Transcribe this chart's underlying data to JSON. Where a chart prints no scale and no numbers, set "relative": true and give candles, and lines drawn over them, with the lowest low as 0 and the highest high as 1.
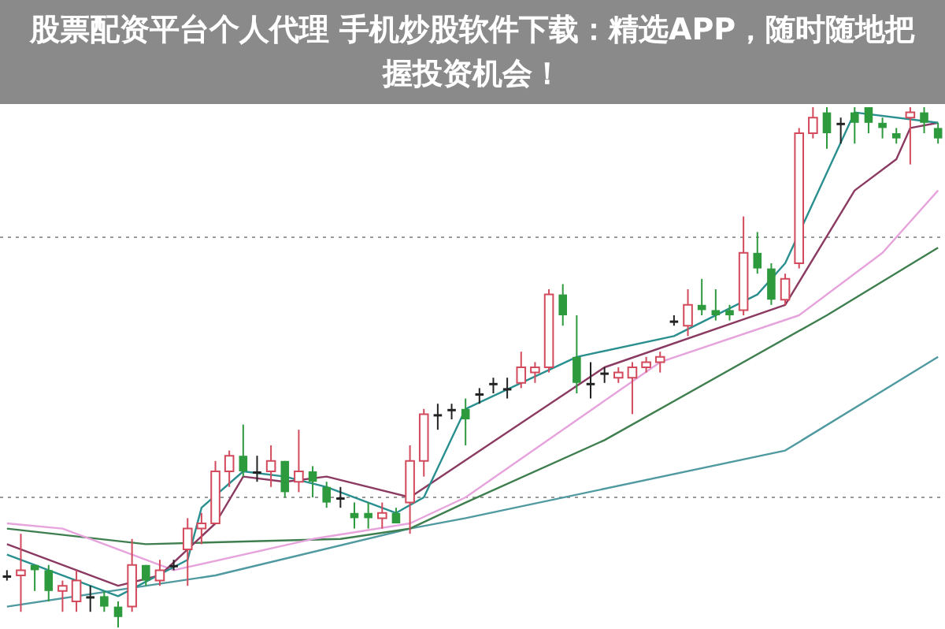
{
  "chart_data": {
    "type": "candlestick",
    "title": "股票配资平台个人代理 手机炒股软件下载：精选APP，随时随地把握投资机会！",
    "relative": true,
    "legend": false,
    "marker": "none",
    "line_style": "solid",
    "categories": [
      null,
      null,
      null,
      null,
      null,
      null,
      null,
      null,
      null,
      null,
      null,
      null,
      null,
      null,
      null,
      null,
      null,
      null,
      null,
      null,
      null,
      null,
      null,
      null,
      null,
      null,
      null,
      null,
      null,
      null,
      null,
      null,
      null,
      null,
      null,
      null,
      null,
      null,
      null,
      null,
      null,
      null,
      null,
      null,
      null,
      null,
      null,
      null,
      null,
      null,
      null,
      null,
      null,
      null,
      null,
      null,
      null,
      null,
      null,
      null,
      null,
      null,
      null,
      null,
      null,
      null,
      null,
      null
    ],
    "ohlc": [
      [
        0.1,
        0.11,
        0.09,
        0.1
      ],
      [
        0.1,
        0.18,
        0.03,
        0.11
      ],
      [
        0.12,
        0.12,
        0.07,
        0.11
      ],
      [
        0.11,
        0.12,
        0.05,
        0.07
      ],
      [
        0.07,
        0.09,
        0.03,
        0.08
      ],
      [
        0.05,
        0.11,
        0.03,
        0.09
      ],
      [
        0.06,
        0.08,
        0.03,
        0.06
      ],
      [
        0.06,
        0.07,
        0.03,
        0.04
      ],
      [
        0.04,
        0.05,
        0,
        0.02
      ],
      [
        0.04,
        0.17,
        0.03,
        0.12
      ],
      [
        0.12,
        0.12,
        0.08,
        0.09
      ],
      [
        0.09,
        0.13,
        0.08,
        0.11
      ],
      [
        0.12,
        0.13,
        0.11,
        0.12
      ],
      [
        0.15,
        0.21,
        0.08,
        0.19
      ],
      [
        0.19,
        0.22,
        0.16,
        0.2
      ],
      [
        0.2,
        0.32,
        0.2,
        0.3
      ],
      [
        0.3,
        0.34,
        0.27,
        0.33
      ],
      [
        0.33,
        0.39,
        0.29,
        0.3
      ],
      [
        0.3,
        0.33,
        0.28,
        0.3
      ],
      [
        0.3,
        0.35,
        0.27,
        0.32
      ],
      [
        0.32,
        0.32,
        0.25,
        0.26
      ],
      [
        0.28,
        0.38,
        0.26,
        0.3
      ],
      [
        0.3,
        0.31,
        0.25,
        0.28
      ],
      [
        0.27,
        0.28,
        0.23,
        0.24
      ],
      [
        0.25,
        0.27,
        0.23,
        0.25
      ],
      [
        0.22,
        0.24,
        0.19,
        0.21
      ],
      [
        0.22,
        0.24,
        0.19,
        0.21
      ],
      [
        0.21,
        0.24,
        0.19,
        0.22
      ],
      [
        0.22,
        0.23,
        0.2,
        0.2
      ],
      [
        0.24,
        0.35,
        0.18,
        0.32
      ],
      [
        0.32,
        0.42,
        0.29,
        0.41
      ],
      [
        0.41,
        0.43,
        0.38,
        0.41
      ],
      [
        0.42,
        0.43,
        0.4,
        0.42
      ],
      [
        0.42,
        0.44,
        0.35,
        0.4
      ],
      [
        0.45,
        0.46,
        0.43,
        0.45
      ],
      [
        0.47,
        0.48,
        0.45,
        0.47
      ],
      [
        0.46,
        0.48,
        0.44,
        0.46
      ],
      [
        0.47,
        0.53,
        0.46,
        0.5
      ],
      [
        0.49,
        0.51,
        0.47,
        0.5
      ],
      [
        0.5,
        0.65,
        0.49,
        0.64
      ],
      [
        0.64,
        0.66,
        0.58,
        0.6
      ],
      [
        0.52,
        0.6,
        0.45,
        0.47
      ],
      [
        0.47,
        0.51,
        0.44,
        0.47
      ],
      [
        0.49,
        0.5,
        0.47,
        0.49
      ],
      [
        0.48,
        0.5,
        0.47,
        0.49
      ],
      [
        0.48,
        0.51,
        0.41,
        0.5
      ],
      [
        0.5,
        0.52,
        0.49,
        0.51
      ],
      [
        0.51,
        0.53,
        0.49,
        0.52
      ],
      [
        0.59,
        0.6,
        0.58,
        0.59
      ],
      [
        0.58,
        0.65,
        0.56,
        0.62
      ],
      [
        0.62,
        0.67,
        0.6,
        0.61
      ],
      [
        0.61,
        0.65,
        0.59,
        0.6
      ],
      [
        0.61,
        0.62,
        0.59,
        0.6
      ],
      [
        0.61,
        0.79,
        0.6,
        0.72
      ],
      [
        0.72,
        0.76,
        0.68,
        0.69
      ],
      [
        0.69,
        0.7,
        0.62,
        0.63
      ],
      [
        0.63,
        0.68,
        0.62,
        0.67
      ],
      [
        0.7,
        0.96,
        0.69,
        0.95
      ],
      [
        0.95,
        1,
        0.94,
        0.98
      ],
      [
        0.99,
        1,
        0.92,
        0.95
      ],
      [
        0.97,
        0.98,
        0.93,
        0.97
      ],
      [
        0.99,
        1,
        0.93,
        0.97
      ],
      [
        1,
        1,
        0.95,
        0.97
      ],
      [
        0.97,
        0.98,
        0.94,
        0.96
      ],
      [
        0.95,
        0.96,
        0.93,
        0.94
      ],
      [
        0.98,
        1,
        0.89,
        0.99
      ],
      [
        0.99,
        1,
        0.95,
        0.97
      ],
      [
        0.96,
        0.97,
        0.93,
        0.94
      ]
    ],
    "series": [
      {
        "type": "line",
        "color": "#2a8f8f",
        "values": [
          0.14,
          null,
          null,
          null,
          null,
          null,
          null,
          null,
          0.06,
          null,
          null,
          null,
          null,
          0.13,
          0.23,
          null,
          null,
          0.3,
          null,
          null,
          0.29,
          null,
          null,
          0.27,
          null,
          null,
          null,
          null,
          0.22,
          null,
          0.25,
          null,
          null,
          0.42,
          null,
          null,
          null,
          null,
          null,
          null,
          null,
          0.52,
          null,
          null,
          null,
          null,
          null,
          null,
          0.56,
          null,
          null,
          null,
          null,
          null,
          0.64,
          null,
          0.7,
          null,
          null,
          null,
          null,
          0.99,
          null,
          null,
          null,
          null,
          null,
          0.97
        ]
      },
      {
        "type": "line",
        "color": "#8b3a62",
        "values": [
          0.16,
          null,
          null,
          null,
          null,
          null,
          null,
          null,
          0.08,
          null,
          null,
          0.1,
          null,
          null,
          null,
          0.2,
          null,
          0.29,
          null,
          null,
          0.28,
          null,
          null,
          0.29,
          null,
          null,
          null,
          null,
          null,
          0.25,
          null,
          null,
          null,
          null,
          null,
          null,
          null,
          null,
          null,
          null,
          null,
          null,
          null,
          0.5,
          null,
          null,
          null,
          null,
          null,
          null,
          null,
          null,
          null,
          null,
          null,
          null,
          0.62,
          null,
          null,
          null,
          null,
          0.84,
          null,
          null,
          0.9,
          0.96,
          null,
          0.97
        ]
      },
      {
        "type": "line",
        "color": "#e6a3dc",
        "values": [
          0.2,
          null,
          null,
          null,
          0.19,
          null,
          null,
          0.16,
          null,
          null,
          null,
          null,
          0.11,
          null,
          null,
          null,
          null,
          null,
          null,
          null,
          null,
          null,
          0.17,
          null,
          null,
          null,
          null,
          null,
          null,
          0.2,
          null,
          null,
          null,
          0.25,
          null,
          null,
          null,
          null,
          null,
          null,
          null,
          null,
          null,
          null,
          null,
          null,
          null,
          0.51,
          null,
          null,
          null,
          null,
          null,
          null,
          null,
          null,
          null,
          0.6,
          null,
          null,
          null,
          null,
          null,
          0.72,
          null,
          null,
          null,
          0.84
        ]
      },
      {
        "type": "line",
        "color": "#3f7f4f",
        "values": [
          0.19,
          null,
          null,
          null,
          null,
          null,
          null,
          null,
          null,
          null,
          0.16,
          null,
          null,
          null,
          null,
          null,
          null,
          null,
          null,
          null,
          null,
          null,
          null,
          null,
          0.17,
          null,
          null,
          null,
          null,
          0.19,
          null,
          null,
          null,
          0.24,
          null,
          null,
          null,
          null,
          null,
          null,
          null,
          null,
          null,
          0.36,
          null,
          null,
          null,
          null,
          null,
          null,
          null,
          null,
          null,
          null,
          null,
          null,
          null,
          null,
          null,
          0.6,
          null,
          null,
          null,
          null,
          null,
          null,
          null,
          0.73
        ]
      },
      {
        "type": "line",
        "color": "#4f9aa0",
        "values": [
          0.04,
          null,
          null,
          null,
          null,
          null,
          null,
          null,
          null,
          null,
          null,
          null,
          null,
          null,
          null,
          0.1,
          null,
          null,
          null,
          null,
          null,
          null,
          null,
          null,
          null,
          null,
          null,
          null,
          null,
          0.19,
          null,
          null,
          null,
          0.21,
          null,
          null,
          null,
          null,
          null,
          null,
          null,
          null,
          null,
          null,
          null,
          null,
          null,
          null,
          null,
          null,
          null,
          null,
          null,
          null,
          null,
          null,
          0.34,
          null,
          null,
          null,
          null,
          null,
          null,
          null,
          null,
          null,
          null,
          0.52
        ]
      }
    ],
    "ref_lines": [
      {
        "axis": "y",
        "value": 0.75,
        "color": "#999999",
        "line_style": "dotted"
      },
      {
        "axis": "y",
        "value": 0.25,
        "color": "#999999",
        "line_style": "dotted"
      }
    ]
  }
}
